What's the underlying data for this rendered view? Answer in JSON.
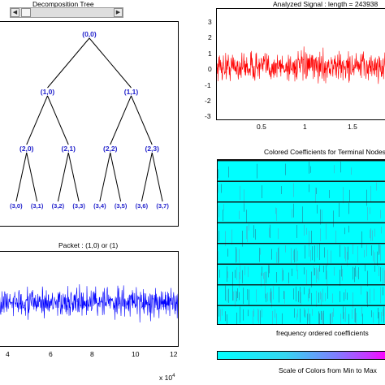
{
  "tree_panel": {
    "title": "Decomposition Tree",
    "nodes": [
      {
        "label": "(0,0)"
      },
      {
        "label": "(1,0)"
      },
      {
        "label": "(1,1)"
      },
      {
        "label": "(2,0)"
      },
      {
        "label": "(2,1)"
      },
      {
        "label": "(2,2)"
      },
      {
        "label": "(2,3)"
      },
      {
        "label": "(3,0)"
      },
      {
        "label": "(3,1)"
      },
      {
        "label": "(3,2)"
      },
      {
        "label": "(3,3)"
      },
      {
        "label": "(3,4)"
      },
      {
        "label": "(3,5)"
      },
      {
        "label": "(3,6)"
      },
      {
        "label": "(3,7)"
      }
    ],
    "node_color": "#2222cc"
  },
  "signal_panel": {
    "title": "Analyzed Signal : length = 243938",
    "color": "#ff0000",
    "yticks": [
      "3",
      "2",
      "1",
      "0",
      "-1",
      "-2",
      "-3"
    ],
    "xticks": [
      "0.5",
      "1",
      "1.5"
    ]
  },
  "packet_panel": {
    "title": "Packet : (1,0) or (1)",
    "color": "#0000ff",
    "xticks": [
      "4",
      "6",
      "8",
      "10",
      "12"
    ],
    "xexp": "x 10",
    "xexp_power": "4"
  },
  "coef_panel": {
    "title": "Colored Coefficients for Terminal Nodes",
    "xlabel": "frequency ordered coefficients",
    "band_count": 8,
    "color": "#00ffff"
  },
  "colorbar": {
    "label": "Scale of Colors from Min to Max"
  }
}
